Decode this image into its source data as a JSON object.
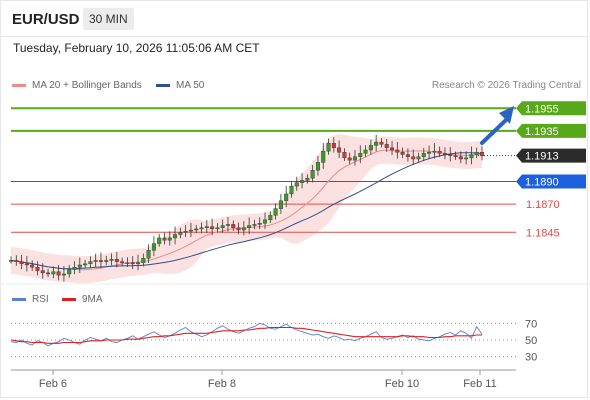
{
  "header": {
    "symbol": "EUR/USD",
    "timeframe": "30 MIN"
  },
  "timestamp": "Tuesday, February 10, 2026 11:05:06 AM CET",
  "legend": {
    "ma20": {
      "label": "MA 20 + Bollinger Bands",
      "color": "#f08a8a"
    },
    "ma50": {
      "label": "MA 50",
      "color": "#2f4f8f"
    }
  },
  "credit": "Research © 2026 Trading Central",
  "rsi_legend": {
    "rsi": {
      "label": "RSI",
      "color": "#5b7fd1"
    },
    "ma9": {
      "label": "9MA",
      "color": "#e02020"
    }
  },
  "chart_data": [
    {
      "type": "line",
      "subtype": "candlestick",
      "ylim": [
        1.18,
        1.1965
      ],
      "current_price": "1.1913",
      "levels": [
        {
          "label": "1.1955",
          "value": 1.1955,
          "kind": "resistance",
          "color": "#58a81c"
        },
        {
          "label": "1.1935",
          "value": 1.1935,
          "kind": "resistance",
          "color": "#58a81c"
        },
        {
          "label": "1.1890",
          "value": 1.189,
          "kind": "pivot",
          "color": "#1e5fe0"
        },
        {
          "label": "1.1870",
          "value": 1.187,
          "kind": "support",
          "color": "#e24a4a"
        },
        {
          "label": "1.1845",
          "value": 1.1845,
          "kind": "support",
          "color": "#e24a4a"
        }
      ],
      "close_series": [
        1.182,
        1.1819,
        1.1817,
        1.1816,
        1.1814,
        1.1811,
        1.1809,
        1.1808,
        1.181,
        1.1807,
        1.1808,
        1.1812,
        1.1814,
        1.1816,
        1.1817,
        1.1819,
        1.182,
        1.1819,
        1.182,
        1.1821,
        1.1819,
        1.1818,
        1.1818,
        1.1817,
        1.1818,
        1.1822,
        1.1829,
        1.1835,
        1.184,
        1.1838,
        1.184,
        1.1843,
        1.1845,
        1.1846,
        1.1847,
        1.1848,
        1.1849,
        1.185,
        1.1848,
        1.1849,
        1.1851,
        1.1852,
        1.1849,
        1.1847,
        1.1849,
        1.1851,
        1.1852,
        1.1853,
        1.1856,
        1.186,
        1.1866,
        1.1873,
        1.1879,
        1.1886,
        1.1889,
        1.1891,
        1.1893,
        1.19,
        1.1907,
        1.1917,
        1.1924,
        1.192,
        1.1916,
        1.1911,
        1.1909,
        1.1912,
        1.1915,
        1.1918,
        1.1922,
        1.1925,
        1.1923,
        1.192,
        1.1918,
        1.1916,
        1.1914,
        1.1912,
        1.191,
        1.1912,
        1.1915,
        1.1916,
        1.1917,
        1.1915,
        1.1914,
        1.1913,
        1.1912,
        1.191,
        1.1911,
        1.1914,
        1.1916,
        1.1913
      ]
    },
    {
      "type": "line",
      "title": "RSI",
      "ylim": [
        20,
        80
      ],
      "y_ticks": [
        70,
        50,
        30
      ],
      "x_ticks": [
        "Feb 6",
        "Feb 8",
        "Feb 10",
        "Feb 11"
      ],
      "series": [
        {
          "name": "RSI",
          "values": [
            48,
            47,
            50,
            46,
            44,
            49,
            47,
            43,
            46,
            48,
            52,
            50,
            47,
            45,
            50,
            53,
            51,
            49,
            52,
            48,
            47,
            50,
            52,
            55,
            51,
            54,
            57,
            60,
            56,
            53,
            55,
            58,
            62,
            65,
            60,
            57,
            54,
            56,
            60,
            64,
            67,
            63,
            60,
            58,
            61,
            64,
            66,
            70,
            68,
            64,
            63,
            66,
            69,
            65,
            62,
            60,
            58,
            56,
            57,
            54,
            52,
            55,
            53,
            50,
            51,
            49,
            52,
            54,
            57,
            60,
            53,
            51,
            52,
            54,
            56,
            53,
            55,
            51,
            50,
            49,
            52,
            54,
            57,
            59,
            56,
            61,
            58,
            52,
            66,
            57
          ]
        },
        {
          "name": "9MA",
          "values": [
            50,
            49,
            48,
            48,
            47,
            47,
            47,
            46,
            46,
            46,
            47,
            47,
            47,
            47,
            48,
            49,
            49,
            49,
            50,
            50,
            50,
            50,
            51,
            51,
            51,
            52,
            53,
            54,
            54,
            55,
            55,
            56,
            57,
            58,
            58,
            58,
            58,
            58,
            59,
            60,
            61,
            61,
            61,
            61,
            62,
            62,
            63,
            64,
            64,
            65,
            65,
            65,
            65,
            65,
            64,
            64,
            63,
            62,
            61,
            60,
            59,
            58,
            57,
            56,
            55,
            54,
            54,
            54,
            54,
            54,
            54,
            54,
            54,
            54,
            55,
            55,
            54,
            54,
            54,
            53,
            53,
            53,
            54,
            54,
            55,
            55,
            55,
            55,
            56,
            56
          ]
        }
      ]
    }
  ]
}
